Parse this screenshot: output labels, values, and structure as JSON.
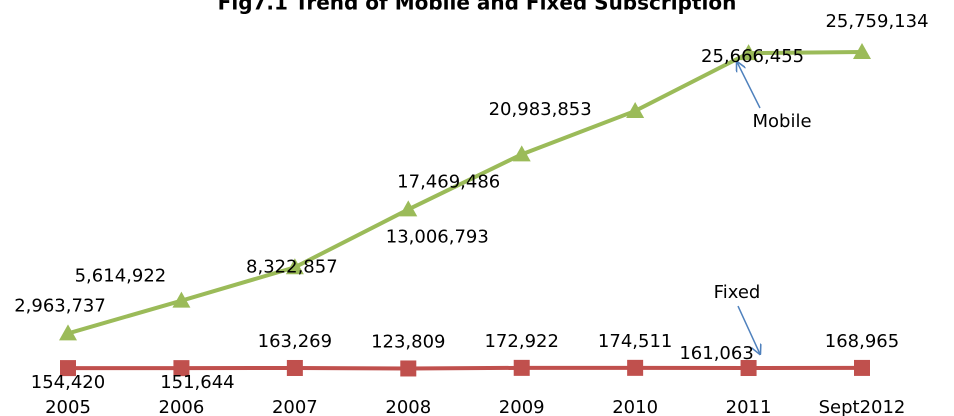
{
  "chart_data": {
    "type": "line",
    "title": "Fig7.1 Trend of Mobile and Fixed Subscription",
    "categories": [
      "2005",
      "2006",
      "2007",
      "2008",
      "2009",
      "2010",
      "2011",
      "Sept2012"
    ],
    "series": [
      {
        "name": "Mobile",
        "color": "#9bbb59",
        "marker": "triangle",
        "values": [
          2963737,
          5614922,
          8322857,
          13006793,
          17469486,
          20983853,
          25666455,
          25759134
        ],
        "value_labels": [
          "2,963,737",
          "5,614,922",
          "8,322,857",
          "13,006,793",
          "17,469,486",
          "20,983,853",
          "25,666,455",
          "25,759,134"
        ]
      },
      {
        "name": "Fixed",
        "color": "#c0504d",
        "marker": "square",
        "values": [
          154420,
          151644,
          163269,
          123809,
          172922,
          174511,
          161063,
          168965
        ],
        "value_labels": [
          "154,420",
          "151,644",
          "163,269",
          "123,809",
          "172,922",
          "174,511",
          "161,063",
          "168,965"
        ]
      }
    ],
    "annotations": [
      "Mobile",
      "Fixed"
    ]
  }
}
